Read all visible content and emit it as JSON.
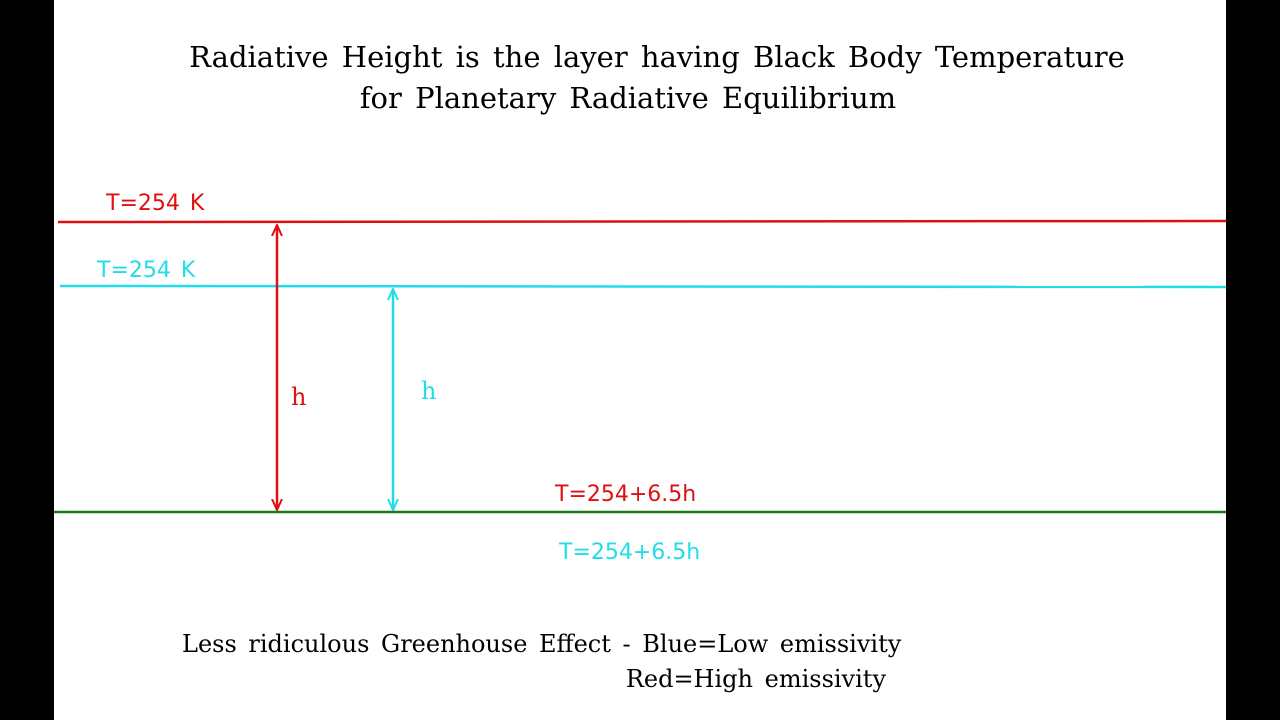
{
  "title": {
    "line1": "Radiative Height is the layer having Black Body Temperature",
    "line2": "for Planetary Radiative Equilibrium"
  },
  "red_layer_label": "T=254  K",
  "blue_layer_label": "T=254  K",
  "red_height_label": "h",
  "blue_height_label": "h",
  "red_surface_label": "T=254+6.5h",
  "blue_surface_label": "T=254+6.5h",
  "caption": {
    "line1": "Less ridiculous Greenhouse Effect - Blue=Low emissivity",
    "line2": "Red=High emissivity"
  },
  "colors": {
    "background": "#000000",
    "panel": "#ffffff",
    "red": "#dd1111",
    "cyan": "#22dde8",
    "ground": "#1a7a1a",
    "text": "#000000"
  }
}
